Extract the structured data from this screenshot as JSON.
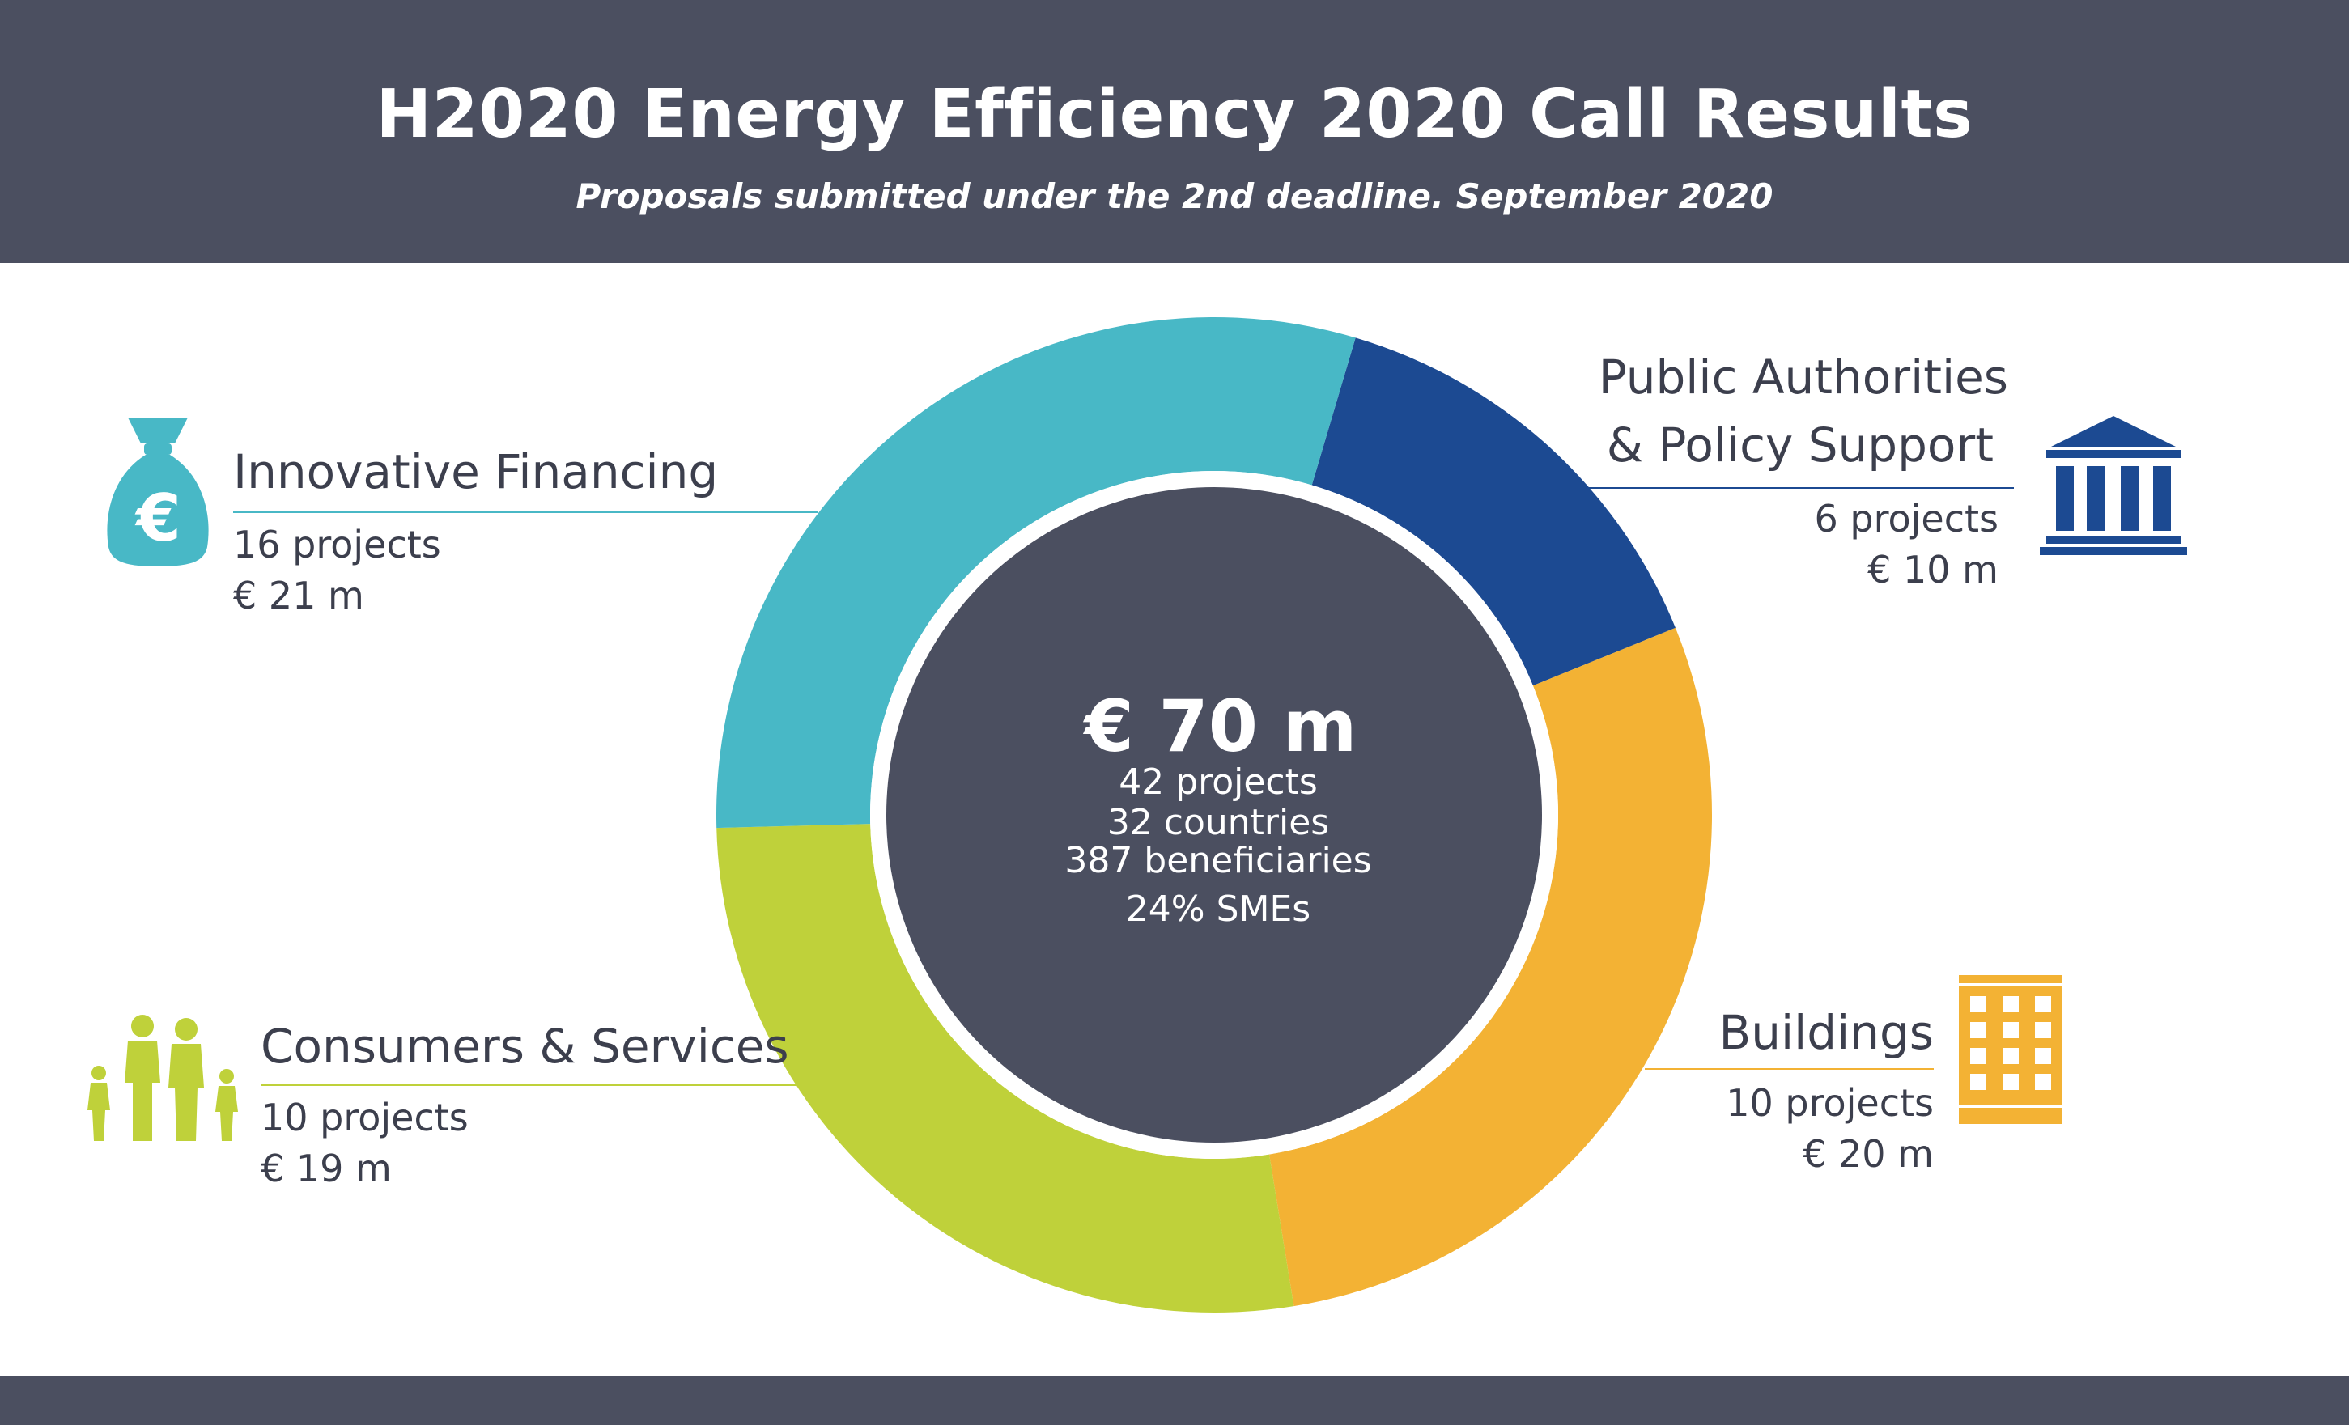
{
  "header": {
    "title": "H2020 Energy Efficiency 2020 Call Results",
    "subtitle": "Proposals submitted under the 2nd deadline. September 2020"
  },
  "center": {
    "total": "€ 70 m",
    "lines": [
      "42 projects",
      "32 countries",
      "387 beneficiaries",
      "24% SMEs"
    ]
  },
  "categories": {
    "innovative_financing": {
      "title": "Innovative Financing",
      "projects_text": "16 projects",
      "funding_text": "€ 21 m",
      "color": "#48b8c6",
      "icon": "money-bag-euro-icon"
    },
    "public_authorities": {
      "title_line1": "Public Authorities",
      "title_line2": "& Policy Support",
      "projects_text": "6 projects",
      "funding_text": "€ 10 m",
      "color": "#1c4a92",
      "icon": "government-building-icon"
    },
    "buildings": {
      "title": "Buildings",
      "projects_text": "10 projects",
      "funding_text": "€ 20 m",
      "color": "#f3b234",
      "icon": "office-building-icon"
    },
    "consumers_services": {
      "title": "Consumers & Services",
      "projects_text": "10 projects",
      "funding_text": "€ 19 m",
      "color": "#bfd13a",
      "icon": "family-icon"
    }
  },
  "chart_data": {
    "type": "pie",
    "style": "donut",
    "unit": "€ m",
    "categories": [
      "Public Authorities & Policy Support",
      "Buildings",
      "Consumers & Services",
      "Innovative Financing"
    ],
    "values": [
      10,
      20,
      19,
      21
    ],
    "projects": [
      6,
      10,
      10,
      16
    ],
    "colors": [
      "#1c4a92",
      "#f3b234",
      "#bfd13a",
      "#48b8c6"
    ],
    "total": 70
  }
}
